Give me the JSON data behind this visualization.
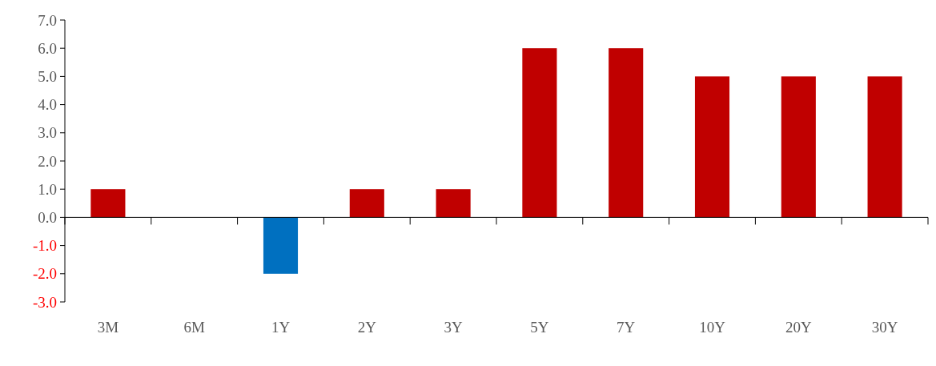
{
  "chart_data": {
    "type": "bar",
    "categories": [
      "3M",
      "6M",
      "1Y",
      "2Y",
      "3Y",
      "5Y",
      "7Y",
      "10Y",
      "20Y",
      "30Y"
    ],
    "values": [
      1,
      0,
      -2,
      1,
      1,
      6,
      6,
      5,
      5,
      5
    ],
    "colors": [
      "#c00000",
      "#c00000",
      "#0070c0",
      "#c00000",
      "#c00000",
      "#c00000",
      "#c00000",
      "#c00000",
      "#c00000",
      "#c00000"
    ],
    "ylim": [
      -3,
      7
    ],
    "yticks": [
      {
        "value": -3,
        "label": "-3.0"
      },
      {
        "value": -2,
        "label": "-2.0"
      },
      {
        "value": -1,
        "label": "-1.0"
      },
      {
        "value": 0,
        "label": "0.0"
      },
      {
        "value": 1,
        "label": "1.0"
      },
      {
        "value": 2,
        "label": "2.0"
      },
      {
        "value": 3,
        "label": "3.0"
      },
      {
        "value": 4,
        "label": "4.0"
      },
      {
        "value": 5,
        "label": "5.0"
      },
      {
        "value": 6,
        "label": "6.0"
      },
      {
        "value": 7,
        "label": "7.0"
      }
    ]
  }
}
